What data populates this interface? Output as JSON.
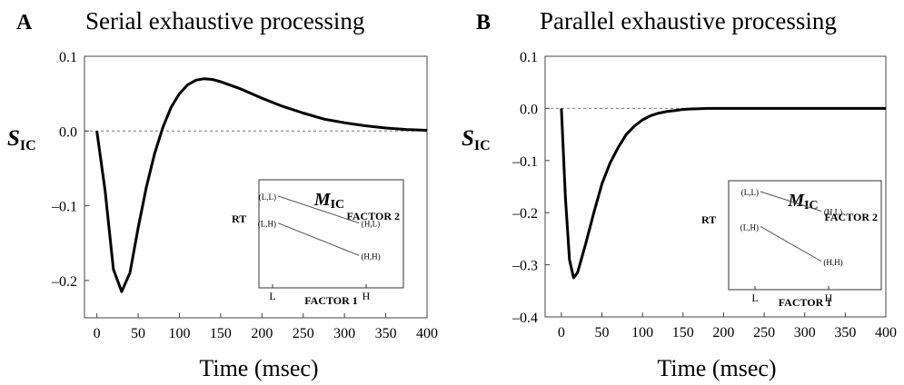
{
  "panels": [
    {
      "letter": "A",
      "title": "Serial exhaustive processing",
      "ylabel_main": "S",
      "ylabel_sub": "IC",
      "xlabel": "Time (msec)"
    },
    {
      "letter": "B",
      "title": "Parallel exhaustive processing",
      "ylabel_main": "S",
      "ylabel_sub": "IC",
      "xlabel": "Time (msec)"
    }
  ],
  "chart_data": [
    {
      "type": "line",
      "title": "Serial exhaustive processing",
      "xlabel": "Time (msec)",
      "ylabel": "SIC",
      "xlim": [
        -15,
        400
      ],
      "ylim": [
        -0.25,
        0.1
      ],
      "xticks": [
        0,
        50,
        100,
        150,
        200,
        250,
        300,
        350,
        400
      ],
      "yticks": [
        -0.2,
        -0.1,
        0.0,
        0.1
      ],
      "ytick_labels": [
        "–0.2",
        "–0.1",
        "0.0",
        "0.1"
      ],
      "reference_line": {
        "y": 0,
        "style": "dashed"
      },
      "series": [
        {
          "x": [
            0,
            10,
            20,
            30,
            40,
            50,
            60,
            70,
            80,
            90,
            100,
            110,
            120,
            130,
            140,
            150,
            175,
            200,
            225,
            250,
            275,
            300,
            325,
            350,
            375,
            400
          ],
          "y": [
            0.0,
            -0.08,
            -0.185,
            -0.215,
            -0.19,
            -0.13,
            -0.075,
            -0.03,
            0.005,
            0.032,
            0.05,
            0.062,
            0.068,
            0.07,
            0.069,
            0.066,
            0.056,
            0.044,
            0.033,
            0.024,
            0.016,
            0.011,
            0.007,
            0.004,
            0.002,
            0.001
          ]
        }
      ],
      "inset": {
        "title_main": "M",
        "title_sub": "IC",
        "ylabel": "RT",
        "xlabel": "FACTOR 1",
        "xticks": [
          "L",
          "H"
        ],
        "legend": "FACTOR 2",
        "points": [
          {
            "label": "(L,L)",
            "factor1": "L",
            "rt": 0.85
          },
          {
            "label": "(H,L)",
            "factor1": "H",
            "rt": 0.6
          },
          {
            "label": "(L,H)",
            "factor1": "L",
            "rt": 0.6
          },
          {
            "label": "(H,H)",
            "factor1": "H",
            "rt": 0.3
          }
        ],
        "lines": [
          [
            "(L,L)",
            "(H,L)"
          ],
          [
            "(L,H)",
            "(H,H)"
          ]
        ]
      }
    },
    {
      "type": "line",
      "title": "Parallel exhaustive processing",
      "xlabel": "Time (msec)",
      "ylabel": "SIC",
      "xlim": [
        -20,
        400
      ],
      "ylim": [
        -0.4,
        0.1
      ],
      "xticks": [
        0,
        50,
        100,
        150,
        200,
        250,
        300,
        350,
        400
      ],
      "yticks": [
        -0.4,
        -0.3,
        -0.2,
        -0.1,
        0.0,
        0.1
      ],
      "ytick_labels": [
        "–0.4",
        "–0.3",
        "–0.2",
        "–0.1",
        "0.0",
        "0.1"
      ],
      "reference_line": {
        "y": 0,
        "style": "dashed"
      },
      "series": [
        {
          "x": [
            0,
            5,
            10,
            15,
            20,
            30,
            40,
            50,
            60,
            70,
            80,
            90,
            100,
            110,
            120,
            130,
            140,
            150,
            160,
            170,
            180,
            200,
            250,
            300,
            350,
            400
          ],
          "y": [
            0.0,
            -0.17,
            -0.29,
            -0.325,
            -0.315,
            -0.26,
            -0.2,
            -0.145,
            -0.105,
            -0.075,
            -0.05,
            -0.034,
            -0.022,
            -0.014,
            -0.009,
            -0.006,
            -0.004,
            -0.002,
            -0.001,
            -0.0005,
            0.0,
            0.0,
            0.0,
            0.0,
            0.0,
            0.0
          ]
        }
      ],
      "inset": {
        "title_main": "M",
        "title_sub": "IC",
        "ylabel": "RT",
        "xlabel": "FACTOR 1",
        "xticks": [
          "L",
          "H"
        ],
        "legend": "FACTOR 2",
        "points": [
          {
            "label": "(L,L)",
            "factor1": "L",
            "rt": 0.9
          },
          {
            "label": "(H,L)",
            "factor1": "H",
            "rt": 0.72
          },
          {
            "label": "(L,H)",
            "factor1": "L",
            "rt": 0.58
          },
          {
            "label": "(H,H)",
            "factor1": "H",
            "rt": 0.26
          }
        ],
        "lines": [
          [
            "(L,L)",
            "(H,L)"
          ],
          [
            "(L,H)",
            "(H,H)"
          ]
        ],
        "connected_points_only": true
      }
    }
  ]
}
